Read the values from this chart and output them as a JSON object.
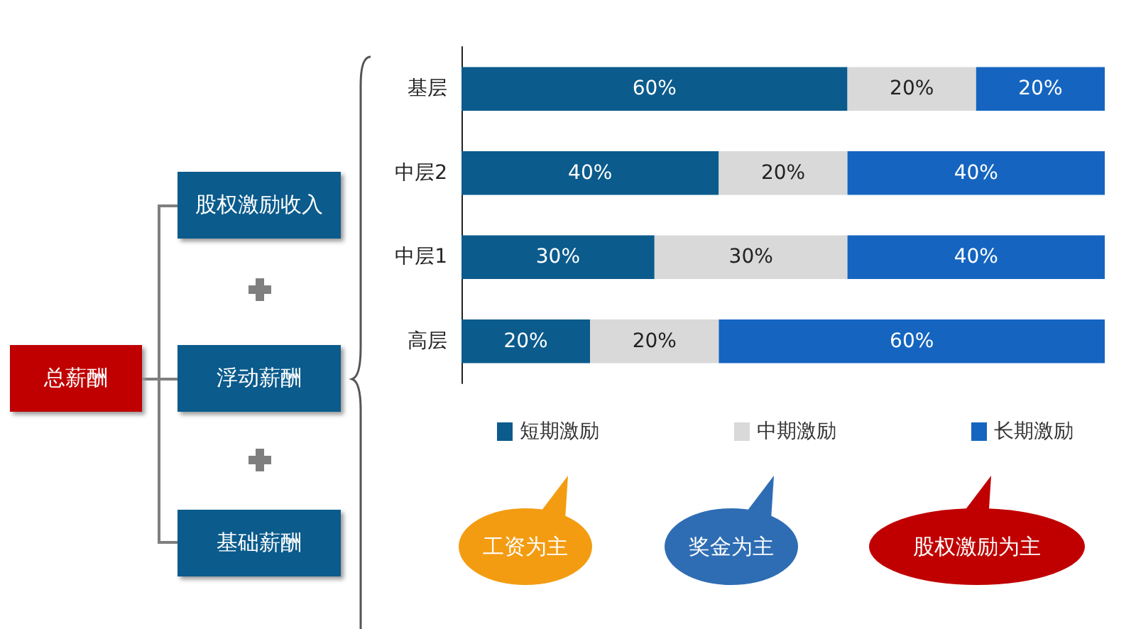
{
  "chart_data": {
    "type": "bar",
    "orientation": "horizontal",
    "stacked": true,
    "categories": [
      "基层",
      "中层2",
      "中层1",
      "高层"
    ],
    "series": [
      {
        "name": "短期激励",
        "color": "#0b5b8c",
        "values": [
          60,
          40,
          30,
          20
        ],
        "value_labels": [
          "60%",
          "40%",
          "30%",
          "20%"
        ]
      },
      {
        "name": "中期激励",
        "color": "#d9d9d9",
        "values": [
          20,
          20,
          30,
          20
        ],
        "value_labels": [
          "20%",
          "20%",
          "30%",
          "20%"
        ]
      },
      {
        "name": "长期激励",
        "color": "#1565c0",
        "values": [
          20,
          40,
          40,
          60
        ],
        "value_labels": [
          "20%",
          "40%",
          "40%",
          "60%"
        ]
      }
    ],
    "legend": "bottom",
    "grid": false,
    "annotations": [
      "总薪酬",
      "股权激励收入",
      "浮动薪酬",
      "基础薪酬",
      "工资为主",
      "奖金为主",
      "股权激励为主"
    ]
  }
}
